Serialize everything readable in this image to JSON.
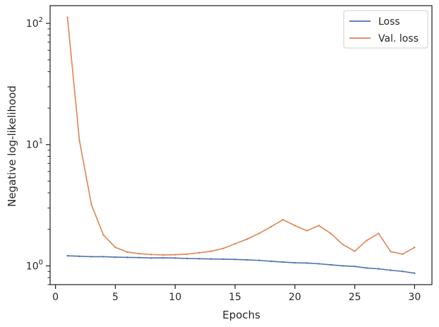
{
  "chart_data": {
    "type": "line",
    "xlabel": "Epochs",
    "ylabel": "Negative log-likelihood",
    "yscale": "log",
    "xlim": [
      -0.45,
      31.45
    ],
    "ylim": [
      0.7,
      140
    ],
    "x_ticks": [
      0,
      5,
      10,
      15,
      20,
      25,
      30
    ],
    "y_ticks": [
      {
        "value": 1,
        "base": "10",
        "exp": "0"
      },
      {
        "value": 10,
        "base": "10",
        "exp": "1"
      },
      {
        "value": 100,
        "base": "10",
        "exp": "2"
      }
    ],
    "x": [
      1,
      2,
      3,
      4,
      5,
      6,
      7,
      8,
      9,
      10,
      11,
      12,
      13,
      14,
      15,
      16,
      17,
      18,
      19,
      20,
      21,
      22,
      23,
      24,
      25,
      26,
      27,
      28,
      29,
      30
    ],
    "series": [
      {
        "name": "Loss",
        "color": "#4c72b0",
        "values": [
          1.21,
          1.2,
          1.19,
          1.19,
          1.18,
          1.175,
          1.17,
          1.16,
          1.165,
          1.16,
          1.15,
          1.145,
          1.14,
          1.135,
          1.13,
          1.12,
          1.11,
          1.09,
          1.075,
          1.06,
          1.055,
          1.04,
          1.02,
          1.0,
          0.99,
          0.96,
          0.945,
          0.92,
          0.9,
          0.87
        ]
      },
      {
        "name": "Val. loss",
        "color": "#dd8452",
        "values": [
          112,
          10.8,
          3.2,
          1.8,
          1.42,
          1.3,
          1.26,
          1.24,
          1.23,
          1.235,
          1.25,
          1.28,
          1.32,
          1.39,
          1.52,
          1.66,
          1.85,
          2.1,
          2.4,
          2.15,
          1.95,
          2.15,
          1.85,
          1.5,
          1.32,
          1.62,
          1.85,
          1.31,
          1.25,
          1.42
        ]
      }
    ],
    "legend_position": "top-right",
    "grid": false
  }
}
